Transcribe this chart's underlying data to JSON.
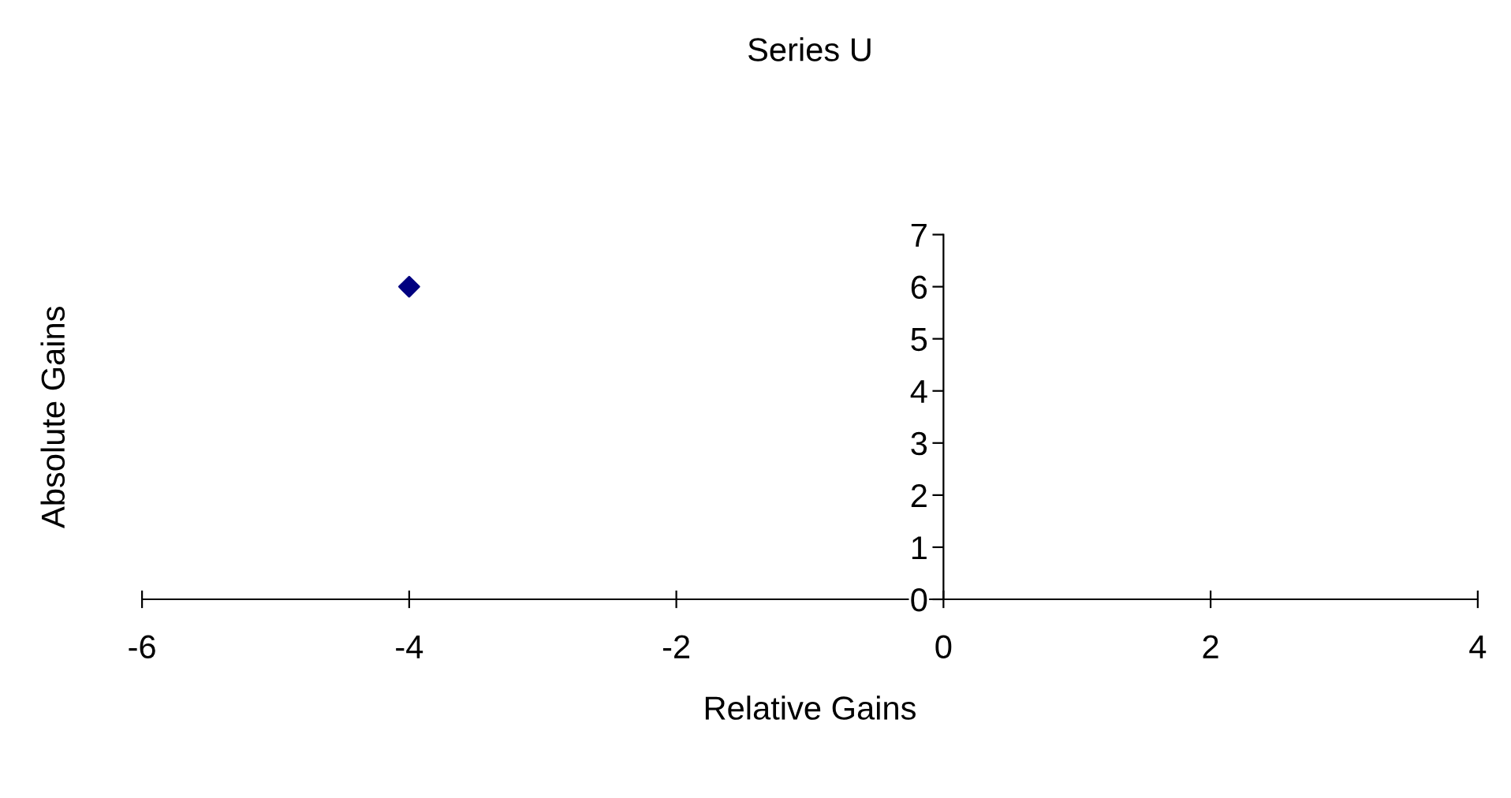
{
  "chart_data": {
    "type": "scatter",
    "title": "Series U",
    "xlabel": "Relative Gains",
    "ylabel": "Absolute Gains",
    "x": [
      -4
    ],
    "values": [
      6
    ],
    "color": "#000080",
    "marker": "diamond",
    "xlim": [
      -6,
      4
    ],
    "xticks": [
      -6,
      -4,
      -2,
      0,
      2,
      4
    ],
    "ylim": [
      0,
      7
    ],
    "yticks": [
      0,
      1,
      2,
      3,
      4,
      5,
      6,
      7
    ],
    "grid": false,
    "legend": false
  }
}
